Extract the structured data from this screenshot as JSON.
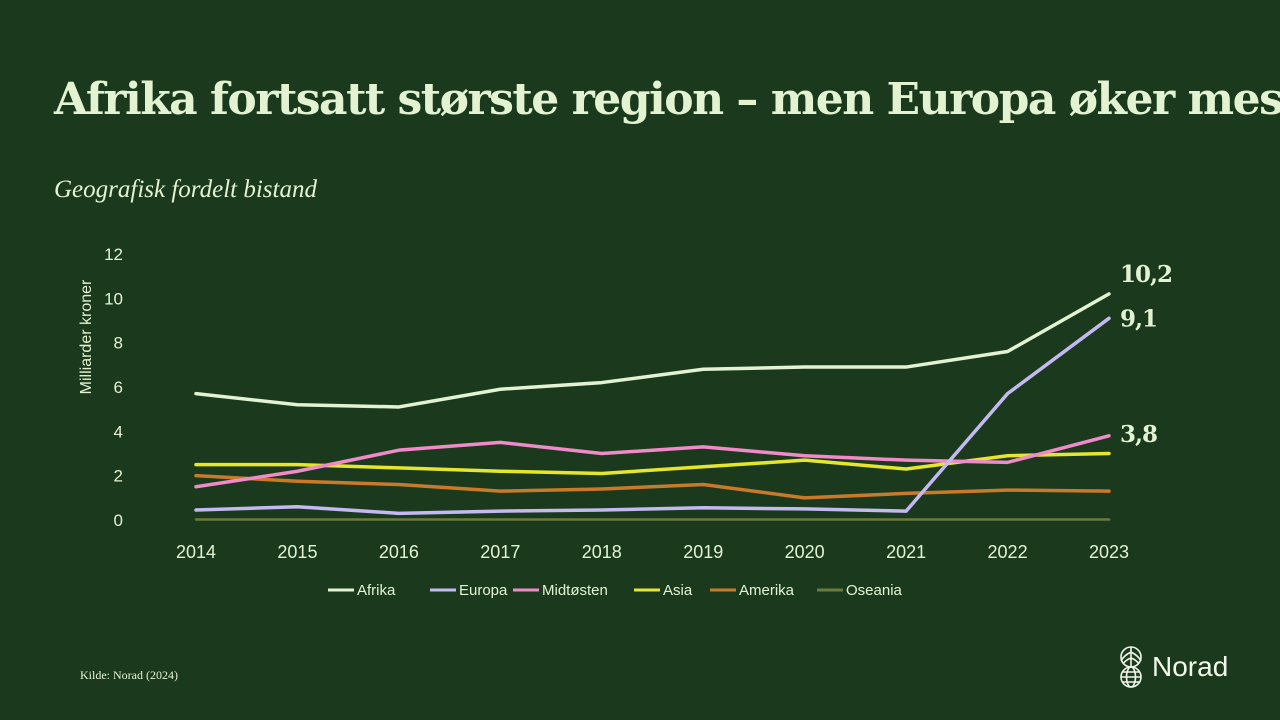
{
  "title": "Afrika fortsatt største region – men Europa øker mest",
  "subtitle": "Geografisk fordelt bistand",
  "source": "Kilde: Norad (2024)",
  "logo": {
    "text": "Norad",
    "icon": "globe-leaf-icon"
  },
  "chart_data": {
    "type": "line",
    "title": "Afrika fortsatt største region – men Europa øker mest",
    "subtitle": "Geografisk fordelt bistand",
    "xlabel": "",
    "ylabel": "Milliarder kroner",
    "ylim": [
      0,
      12
    ],
    "yticks": [
      "0",
      "2",
      "4",
      "6",
      "8",
      "10",
      "12"
    ],
    "x": [
      "2014",
      "2015",
      "2016",
      "2017",
      "2018",
      "2019",
      "2020",
      "2021",
      "2022",
      "2023"
    ],
    "grid": false,
    "legend_position": "bottom",
    "series": [
      {
        "name": "Afrika",
        "color": "#e3f3d2",
        "values": [
          5.7,
          5.2,
          5.1,
          5.9,
          6.2,
          6.8,
          6.9,
          6.9,
          7.6,
          10.2
        ],
        "end_label": "10,2"
      },
      {
        "name": "Europa",
        "color": "#c4b9f2",
        "values": [
          0.45,
          0.6,
          0.3,
          0.4,
          0.45,
          0.55,
          0.5,
          0.4,
          5.7,
          9.1
        ],
        "end_label": "9,1"
      },
      {
        "name": "Midtøsten",
        "color": "#f08ac8",
        "values": [
          1.5,
          2.2,
          3.15,
          3.5,
          3.0,
          3.3,
          2.9,
          2.7,
          2.6,
          3.8
        ],
        "end_label": "3,8"
      },
      {
        "name": "Asia",
        "color": "#e6e62a",
        "values": [
          2.5,
          2.5,
          2.35,
          2.2,
          2.1,
          2.4,
          2.7,
          2.3,
          2.9,
          3.0
        ]
      },
      {
        "name": "Amerika",
        "color": "#c87a2a",
        "values": [
          2.0,
          1.75,
          1.6,
          1.3,
          1.4,
          1.6,
          1.0,
          1.2,
          1.35,
          1.3
        ]
      },
      {
        "name": "Oseania",
        "color": "#6b7a3e",
        "values": [
          0.02,
          0.02,
          0.02,
          0.02,
          0.02,
          0.02,
          0.02,
          0.02,
          0.02,
          0.02
        ]
      }
    ]
  }
}
